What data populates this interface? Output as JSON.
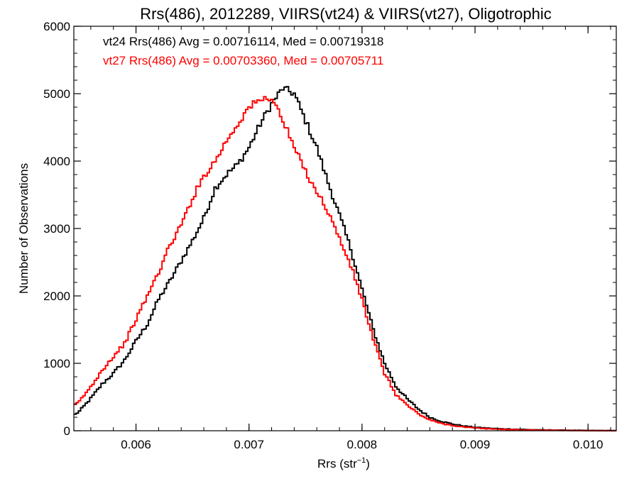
{
  "chart_data": {
    "type": "line",
    "style": "step histogram",
    "title": "Rrs(486), 2012289, VIIRS(vt24) & VIIRS(vt27), Oligotrophic",
    "xlabel": "Rrs (str",
    "xlabel_sup": "−1",
    "xlabel_end": ")",
    "ylabel": "Number of Observations",
    "xlim": [
      0.00545,
      0.01025
    ],
    "ylim": [
      0,
      6000
    ],
    "xticks": [
      0.006,
      0.007,
      0.008,
      0.009,
      0.01
    ],
    "xtick_labels": [
      "0.006",
      "0.007",
      "0.008",
      "0.009",
      "0.010"
    ],
    "yticks": [
      0,
      1000,
      2000,
      3000,
      4000,
      5000,
      6000
    ],
    "ytick_labels": [
      "0",
      "1000",
      "2000",
      "3000",
      "4000",
      "5000",
      "6000"
    ],
    "grid": false,
    "annotations": [
      {
        "text": "vt24 Rrs(486) Avg = 0.00716114, Med = 0.00719318",
        "color": "#000000"
      },
      {
        "text": "vt27 Rrs(486) Avg = 0.00703360, Med = 0.00705711",
        "color": "#ff0000"
      }
    ],
    "series": [
      {
        "color": "#000000",
        "x": [
          0.00545,
          0.0055,
          0.0056,
          0.0057,
          0.0058,
          0.0059,
          0.006,
          0.0061,
          0.0062,
          0.0063,
          0.0064,
          0.0065,
          0.0066,
          0.0067,
          0.0068,
          0.0069,
          0.007,
          0.0071,
          0.0072,
          0.0073,
          0.0074,
          0.0075,
          0.0076,
          0.0077,
          0.0078,
          0.0079,
          0.008,
          0.0081,
          0.0082,
          0.0083,
          0.0084,
          0.0085,
          0.0086,
          0.0087,
          0.0088,
          0.0089,
          0.009,
          0.0091,
          0.0092,
          0.0093,
          0.0094,
          0.0095,
          0.0096,
          0.0097,
          0.0098,
          0.0099,
          0.01,
          0.01025
        ],
        "y": [
          230,
          290,
          480,
          690,
          850,
          1050,
          1330,
          1580,
          1950,
          2220,
          2520,
          2820,
          3150,
          3600,
          3800,
          3950,
          4200,
          4550,
          4850,
          5080,
          5000,
          4600,
          4200,
          3680,
          3200,
          2700,
          2100,
          1500,
          1000,
          660,
          470,
          320,
          200,
          140,
          100,
          70,
          50,
          40,
          30,
          25,
          20,
          15,
          12,
          10,
          8,
          6,
          4,
          2
        ]
      },
      {
        "color": "#ff0000",
        "x": [
          0.00545,
          0.0055,
          0.0056,
          0.0057,
          0.0058,
          0.0059,
          0.006,
          0.0061,
          0.0062,
          0.0063,
          0.0064,
          0.0065,
          0.0066,
          0.0067,
          0.0068,
          0.0069,
          0.007,
          0.0071,
          0.0072,
          0.0073,
          0.0074,
          0.0075,
          0.0076,
          0.0077,
          0.0078,
          0.0079,
          0.008,
          0.0081,
          0.0082,
          0.0083,
          0.0084,
          0.0085,
          0.0086,
          0.0087,
          0.0088,
          0.0089,
          0.009,
          0.0091,
          0.0092,
          0.0093,
          0.0094,
          0.0095,
          0.0096,
          0.0097,
          0.0098,
          0.0099,
          0.01,
          0.01025
        ],
        "y": [
          360,
          440,
          650,
          900,
          1100,
          1300,
          1650,
          2000,
          2350,
          2750,
          3050,
          3450,
          3780,
          4000,
          4300,
          4550,
          4800,
          4900,
          4950,
          4600,
          4200,
          3850,
          3550,
          3250,
          2850,
          2450,
          1950,
          1350,
          850,
          540,
          380,
          250,
          160,
          110,
          80,
          55,
          40,
          30,
          24,
          18,
          14,
          10,
          8,
          6,
          4,
          3,
          2,
          1
        ]
      }
    ]
  }
}
